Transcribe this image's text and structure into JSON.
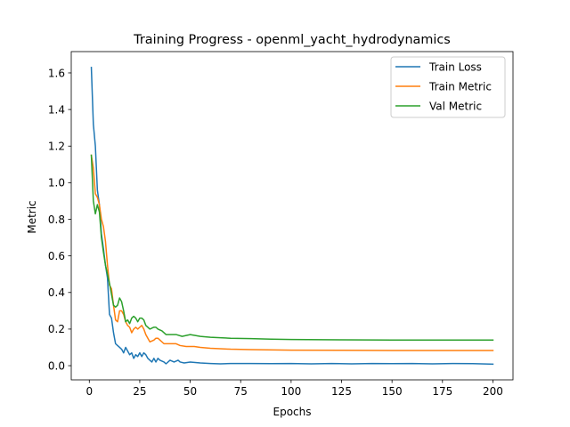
{
  "chart_data": {
    "type": "line",
    "title": "Training Progress - openml_yacht_hydrodynamics",
    "xlabel": "Epochs",
    "ylabel": "Metric",
    "xlim": [
      -8.95,
      209.95
    ],
    "ylim": [
      -0.0775,
      1.7165
    ],
    "xticks": [
      0,
      25,
      50,
      75,
      100,
      125,
      150,
      175,
      200
    ],
    "yticks": [
      0.0,
      0.2,
      0.4,
      0.6,
      0.8,
      1.0,
      1.2,
      1.4,
      1.6
    ],
    "ytick_labels": [
      "0.0",
      "0.2",
      "0.4",
      "0.6",
      "0.8",
      "1.0",
      "1.2",
      "1.4",
      "1.6"
    ],
    "grid": false,
    "legend_position": "top-right",
    "series": [
      {
        "name": "Train Loss",
        "color": "#1f77b4",
        "points": [
          [
            1,
            1.63
          ],
          [
            2,
            1.32
          ],
          [
            3,
            1.2
          ],
          [
            4,
            0.96
          ],
          [
            5,
            0.88
          ],
          [
            6,
            0.72
          ],
          [
            7,
            0.64
          ],
          [
            8,
            0.55
          ],
          [
            9,
            0.48
          ],
          [
            10,
            0.28
          ],
          [
            11,
            0.26
          ],
          [
            12,
            0.18
          ],
          [
            13,
            0.12
          ],
          [
            14,
            0.11
          ],
          [
            15,
            0.1
          ],
          [
            16,
            0.09
          ],
          [
            17,
            0.07
          ],
          [
            18,
            0.1
          ],
          [
            19,
            0.08
          ],
          [
            20,
            0.06
          ],
          [
            21,
            0.07
          ],
          [
            22,
            0.04
          ],
          [
            23,
            0.06
          ],
          [
            24,
            0.05
          ],
          [
            25,
            0.07
          ],
          [
            26,
            0.05
          ],
          [
            27,
            0.07
          ],
          [
            28,
            0.06
          ],
          [
            29,
            0.04
          ],
          [
            30,
            0.03
          ],
          [
            31,
            0.02
          ],
          [
            32,
            0.04
          ],
          [
            33,
            0.02
          ],
          [
            34,
            0.04
          ],
          [
            35,
            0.03
          ],
          [
            37,
            0.02
          ],
          [
            38,
            0.01
          ],
          [
            40,
            0.03
          ],
          [
            42,
            0.02
          ],
          [
            44,
            0.03
          ],
          [
            45,
            0.02
          ],
          [
            47,
            0.015
          ],
          [
            50,
            0.02
          ],
          [
            55,
            0.015
          ],
          [
            60,
            0.012
          ],
          [
            65,
            0.01
          ],
          [
            70,
            0.012
          ],
          [
            80,
            0.012
          ],
          [
            90,
            0.011
          ],
          [
            100,
            0.012
          ],
          [
            110,
            0.01
          ],
          [
            120,
            0.012
          ],
          [
            130,
            0.01
          ],
          [
            140,
            0.012
          ],
          [
            150,
            0.011
          ],
          [
            160,
            0.012
          ],
          [
            170,
            0.01
          ],
          [
            180,
            0.012
          ],
          [
            190,
            0.011
          ],
          [
            200,
            0.008
          ]
        ]
      },
      {
        "name": "Train Metric",
        "color": "#ff7f0e",
        "points": [
          [
            1,
            1.15
          ],
          [
            2,
            1.08
          ],
          [
            3,
            0.94
          ],
          [
            4,
            0.92
          ],
          [
            5,
            0.88
          ],
          [
            6,
            0.8
          ],
          [
            7,
            0.76
          ],
          [
            8,
            0.68
          ],
          [
            9,
            0.55
          ],
          [
            10,
            0.44
          ],
          [
            11,
            0.42
          ],
          [
            12,
            0.33
          ],
          [
            13,
            0.25
          ],
          [
            14,
            0.24
          ],
          [
            15,
            0.3
          ],
          [
            16,
            0.3
          ],
          [
            17,
            0.28
          ],
          [
            18,
            0.24
          ],
          [
            19,
            0.22
          ],
          [
            20,
            0.21
          ],
          [
            21,
            0.18
          ],
          [
            22,
            0.2
          ],
          [
            23,
            0.21
          ],
          [
            24,
            0.2
          ],
          [
            25,
            0.21
          ],
          [
            26,
            0.22
          ],
          [
            27,
            0.2
          ],
          [
            28,
            0.17
          ],
          [
            30,
            0.13
          ],
          [
            32,
            0.14
          ],
          [
            33,
            0.15
          ],
          [
            34,
            0.15
          ],
          [
            35,
            0.14
          ],
          [
            37,
            0.12
          ],
          [
            40,
            0.12
          ],
          [
            43,
            0.12
          ],
          [
            45,
            0.11
          ],
          [
            48,
            0.105
          ],
          [
            52,
            0.105
          ],
          [
            55,
            0.1
          ],
          [
            60,
            0.095
          ],
          [
            70,
            0.09
          ],
          [
            80,
            0.088
          ],
          [
            100,
            0.085
          ],
          [
            125,
            0.084
          ],
          [
            150,
            0.083
          ],
          [
            175,
            0.083
          ],
          [
            200,
            0.083
          ]
        ]
      },
      {
        "name": "Val Metric",
        "color": "#2ca02c",
        "points": [
          [
            1,
            1.15
          ],
          [
            2,
            0.9
          ],
          [
            3,
            0.83
          ],
          [
            4,
            0.88
          ],
          [
            5,
            0.84
          ],
          [
            6,
            0.7
          ],
          [
            7,
            0.62
          ],
          [
            8,
            0.55
          ],
          [
            9,
            0.5
          ],
          [
            10,
            0.45
          ],
          [
            11,
            0.39
          ],
          [
            12,
            0.33
          ],
          [
            13,
            0.32
          ],
          [
            14,
            0.33
          ],
          [
            15,
            0.37
          ],
          [
            16,
            0.35
          ],
          [
            17,
            0.3
          ],
          [
            18,
            0.24
          ],
          [
            19,
            0.25
          ],
          [
            20,
            0.23
          ],
          [
            21,
            0.26
          ],
          [
            22,
            0.27
          ],
          [
            23,
            0.26
          ],
          [
            24,
            0.24
          ],
          [
            25,
            0.26
          ],
          [
            26,
            0.26
          ],
          [
            27,
            0.25
          ],
          [
            28,
            0.22
          ],
          [
            30,
            0.2
          ],
          [
            32,
            0.21
          ],
          [
            33,
            0.21
          ],
          [
            34,
            0.2
          ],
          [
            36,
            0.19
          ],
          [
            38,
            0.17
          ],
          [
            40,
            0.17
          ],
          [
            43,
            0.17
          ],
          [
            46,
            0.16
          ],
          [
            50,
            0.17
          ],
          [
            55,
            0.16
          ],
          [
            60,
            0.155
          ],
          [
            70,
            0.15
          ],
          [
            80,
            0.148
          ],
          [
            90,
            0.145
          ],
          [
            100,
            0.143
          ],
          [
            125,
            0.141
          ],
          [
            150,
            0.14
          ],
          [
            175,
            0.14
          ],
          [
            200,
            0.14
          ]
        ]
      }
    ]
  }
}
